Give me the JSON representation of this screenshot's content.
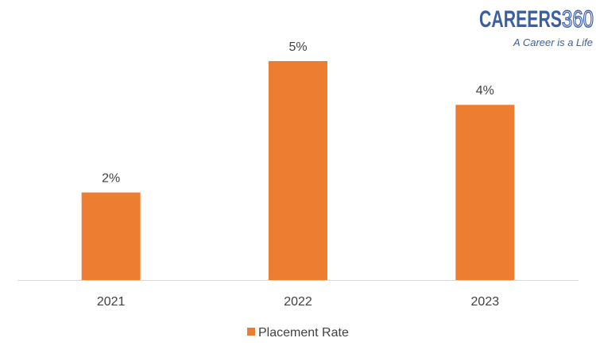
{
  "logo": {
    "name": "CAREERS",
    "number": "360",
    "tagline": "A Career is a Life"
  },
  "chart_data": {
    "type": "bar",
    "title": "",
    "xlabel": "",
    "ylabel": "",
    "categories": [
      "2021",
      "2022",
      "2023"
    ],
    "series": [
      {
        "name": "Placement Rate",
        "values": [
          2,
          5,
          4
        ],
        "labels": [
          "2%",
          "5%",
          "4%"
        ],
        "color": "#ed7d31"
      }
    ],
    "ylim": [
      0,
      5.5
    ],
    "grid": false,
    "legend": "bottom-center"
  }
}
